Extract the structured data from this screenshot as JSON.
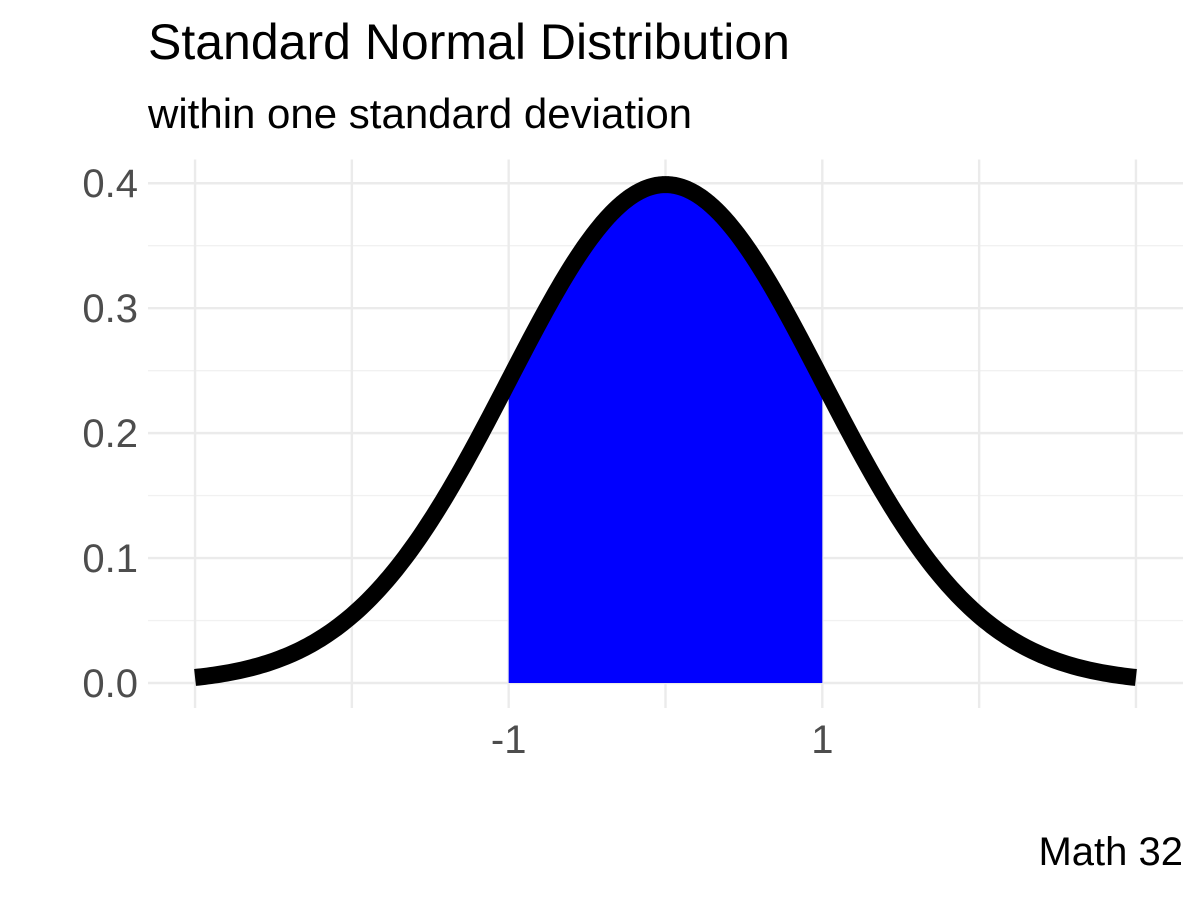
{
  "colors": {
    "background": "#FFFFFF",
    "curve_stroke": "#000000",
    "area_fill": "#0000FF",
    "grid_major": "#EBEBEB",
    "grid_minor": "#F1F1F1",
    "axis_text": "#4D4D4D",
    "title_text": "#000000"
  },
  "chart_data": {
    "type": "area",
    "title": "Standard Normal Distribution",
    "subtitle": "within one standard deviation",
    "caption": "Math 32",
    "legend": "none",
    "grid": true,
    "distribution": {
      "name": "standard-normal",
      "mean": 0,
      "sd": 1
    },
    "curve_x_range": [
      -3,
      3
    ],
    "shaded_region": {
      "from": -1,
      "to": 1,
      "fill": "#0000FF"
    },
    "x_axis": {
      "range": [
        -3.3,
        3.3
      ],
      "gridlines": [
        -3,
        -2,
        -1,
        0,
        1,
        2,
        3
      ],
      "tick_labels": [
        {
          "value": -1,
          "label": "-1"
        },
        {
          "value": 1,
          "label": "1"
        }
      ]
    },
    "y_axis": {
      "range": [
        -0.02,
        0.419
      ],
      "major_ticks": [
        {
          "value": 0.0,
          "label": "0.0"
        },
        {
          "value": 0.1,
          "label": "0.1"
        },
        {
          "value": 0.2,
          "label": "0.2"
        },
        {
          "value": 0.3,
          "label": "0.3"
        },
        {
          "value": 0.4,
          "label": "0.4"
        }
      ],
      "minor_gridlines": [
        0.05,
        0.15,
        0.25,
        0.35
      ]
    },
    "curve_points": {
      "x": [
        -3,
        -2.75,
        -2.5,
        -2.25,
        -2,
        -1.75,
        -1.5,
        -1.25,
        -1,
        -0.75,
        -0.5,
        -0.25,
        0,
        0.25,
        0.5,
        0.75,
        1,
        1.25,
        1.5,
        1.75,
        2,
        2.25,
        2.5,
        2.75,
        3
      ],
      "density": [
        0.0044,
        0.0091,
        0.0175,
        0.0317,
        0.054,
        0.0863,
        0.1295,
        0.1826,
        0.242,
        0.3011,
        0.3521,
        0.3867,
        0.3989,
        0.3867,
        0.3521,
        0.3011,
        0.242,
        0.1826,
        0.1295,
        0.0863,
        0.054,
        0.0317,
        0.0175,
        0.0091,
        0.0044
      ]
    },
    "key_values": {
      "peak_density": 0.3989,
      "density_at_plus_minus_1": 0.242
    }
  }
}
